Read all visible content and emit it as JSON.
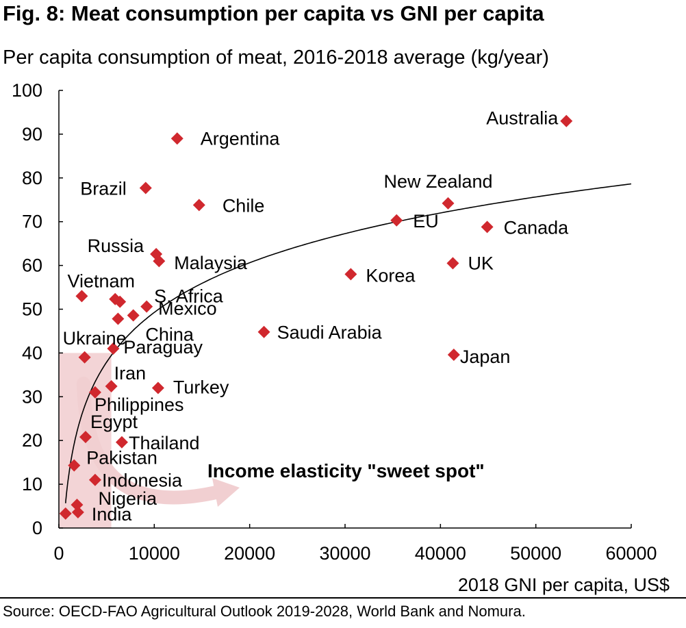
{
  "title": "Fig. 8: Meat consumption per capita vs GNI per capita",
  "subtitle": "Per capita consumption of meat, 2016-2018 average (kg/year)",
  "source": "Source:  OECD-FAO Agricultural Outlook 2019-2028, World Bank and Nomura.",
  "colors": {
    "marker": "#d0282e",
    "shade": "#f3d4d6",
    "arrow": "#f1cfd1",
    "line": "#000000"
  },
  "chart_data": {
    "type": "scatter",
    "xlabel": "2018 GNI per capita, US$",
    "ylabel": "",
    "xlim": [
      0,
      60000
    ],
    "ylim": [
      0,
      100
    ],
    "x_ticks": [
      0,
      10000,
      20000,
      30000,
      40000,
      50000,
      60000
    ],
    "y_ticks": [
      0,
      10,
      20,
      30,
      40,
      50,
      60,
      70,
      80,
      90,
      100
    ],
    "grid": false,
    "trendline": "logarithmic",
    "annotation": "Income elasticity \"sweet spot\"",
    "sweet_spot_region": {
      "x": [
        0,
        5500
      ],
      "y": [
        0,
        40
      ]
    },
    "points": [
      {
        "label": "Australia",
        "x": 53200,
        "y": 93
      },
      {
        "label": "Argentina",
        "x": 12400,
        "y": 89
      },
      {
        "label": "Brazil",
        "x": 9100,
        "y": 77.7
      },
      {
        "label": "Chile",
        "x": 14700,
        "y": 73.8
      },
      {
        "label": "New Zealand",
        "x": 40800,
        "y": 74.2
      },
      {
        "label": "EU",
        "x": 35400,
        "y": 70.3
      },
      {
        "label": "Canada",
        "x": 44900,
        "y": 68.8
      },
      {
        "label": "Russia",
        "x": 10200,
        "y": 62.6
      },
      {
        "label": "Malaysia",
        "x": 10500,
        "y": 61
      },
      {
        "label": "UK",
        "x": 41300,
        "y": 60.5
      },
      {
        "label": "Korea",
        "x": 30600,
        "y": 58
      },
      {
        "label": "Vietnam",
        "x": 2400,
        "y": 53
      },
      {
        "label": "S. Africa",
        "x": 6400,
        "y": 51.7
      },
      {
        "label": "",
        "x": 5900,
        "y": 52.3
      },
      {
        "label": "Mexico",
        "x": 9200,
        "y": 50.6
      },
      {
        "label": "",
        "x": 7800,
        "y": 48.6
      },
      {
        "label": "China",
        "x": 6200,
        "y": 47.8
      },
      {
        "label": "Saudi Arabia",
        "x": 21500,
        "y": 44.8
      },
      {
        "label": "Ukraine",
        "x": 2700,
        "y": 39
      },
      {
        "label": "Paraguay",
        "x": 5700,
        "y": 41
      },
      {
        "label": "Japan",
        "x": 41400,
        "y": 39.6
      },
      {
        "label": "Iran",
        "x": 5500,
        "y": 32.4
      },
      {
        "label": "Turkey",
        "x": 10400,
        "y": 32
      },
      {
        "label": "Philippines",
        "x": 3800,
        "y": 31
      },
      {
        "label": "Egypt",
        "x": 2800,
        "y": 20.8
      },
      {
        "label": "Thailand",
        "x": 6600,
        "y": 19.6
      },
      {
        "label": "Pakistan",
        "x": 1600,
        "y": 14.3
      },
      {
        "label": "Indonesia",
        "x": 3800,
        "y": 11
      },
      {
        "label": "Nigeria",
        "x": 1900,
        "y": 5.3
      },
      {
        "label": "India",
        "x": 2000,
        "y": 3.6
      },
      {
        "label": "",
        "x": 700,
        "y": 3.3
      }
    ]
  }
}
